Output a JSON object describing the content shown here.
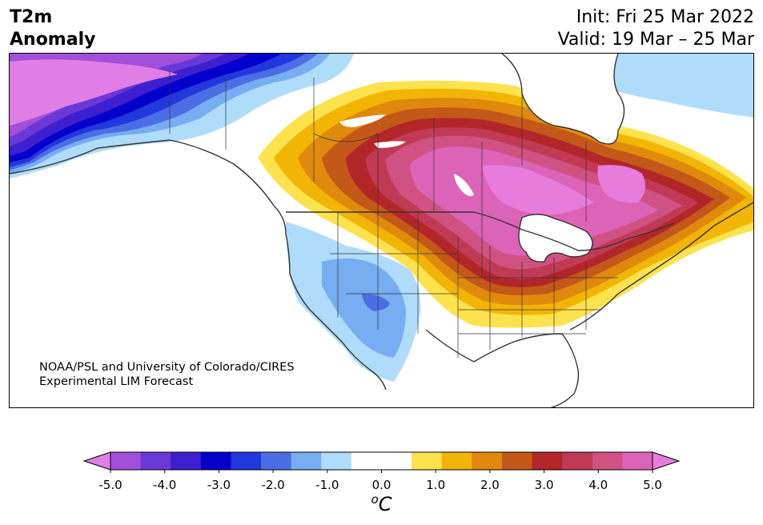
{
  "title": {
    "line1": "T2m",
    "line2": "Anomaly"
  },
  "info": {
    "init": "Init: Fri 25 Mar 2022",
    "valid": "Valid: 19 Mar – 25 Mar"
  },
  "credit": {
    "line1": "NOAA/PSL and University of Colorado/CIRES",
    "line2": "Experimental LIM Forecast"
  },
  "colorbar": {
    "colors": [
      "#e07ee6",
      "#a24fd9",
      "#6a38d6",
      "#3d1fd0",
      "#0300cc",
      "#2237dc",
      "#4c6ee4",
      "#77adf1",
      "#b0dcfc",
      "#ffffff",
      "#ffffff",
      "#fde24e",
      "#f2b505",
      "#df8a0c",
      "#c45818",
      "#b2262a",
      "#c13a55",
      "#d05283",
      "#db63b8",
      "#e87cdc"
    ],
    "ticks": [
      "-5.0",
      "-4.0",
      "-3.0",
      "-2.0",
      "-1.0",
      "0.0",
      "1.0",
      "2.0",
      "3.0",
      "4.0",
      "5.0"
    ],
    "unit_base": "C",
    "unit_sup": "o",
    "min": -5.0,
    "max": 5.0,
    "extend": "both"
  },
  "colors": {
    "strong_purple": "#e07ee6",
    "cold_blue": "#0300cc",
    "light_blue": "#b0dcfc",
    "warm_yellow": "#fde24e",
    "warm_red": "#b2262a",
    "warm_pink": "#e87cdc"
  }
}
